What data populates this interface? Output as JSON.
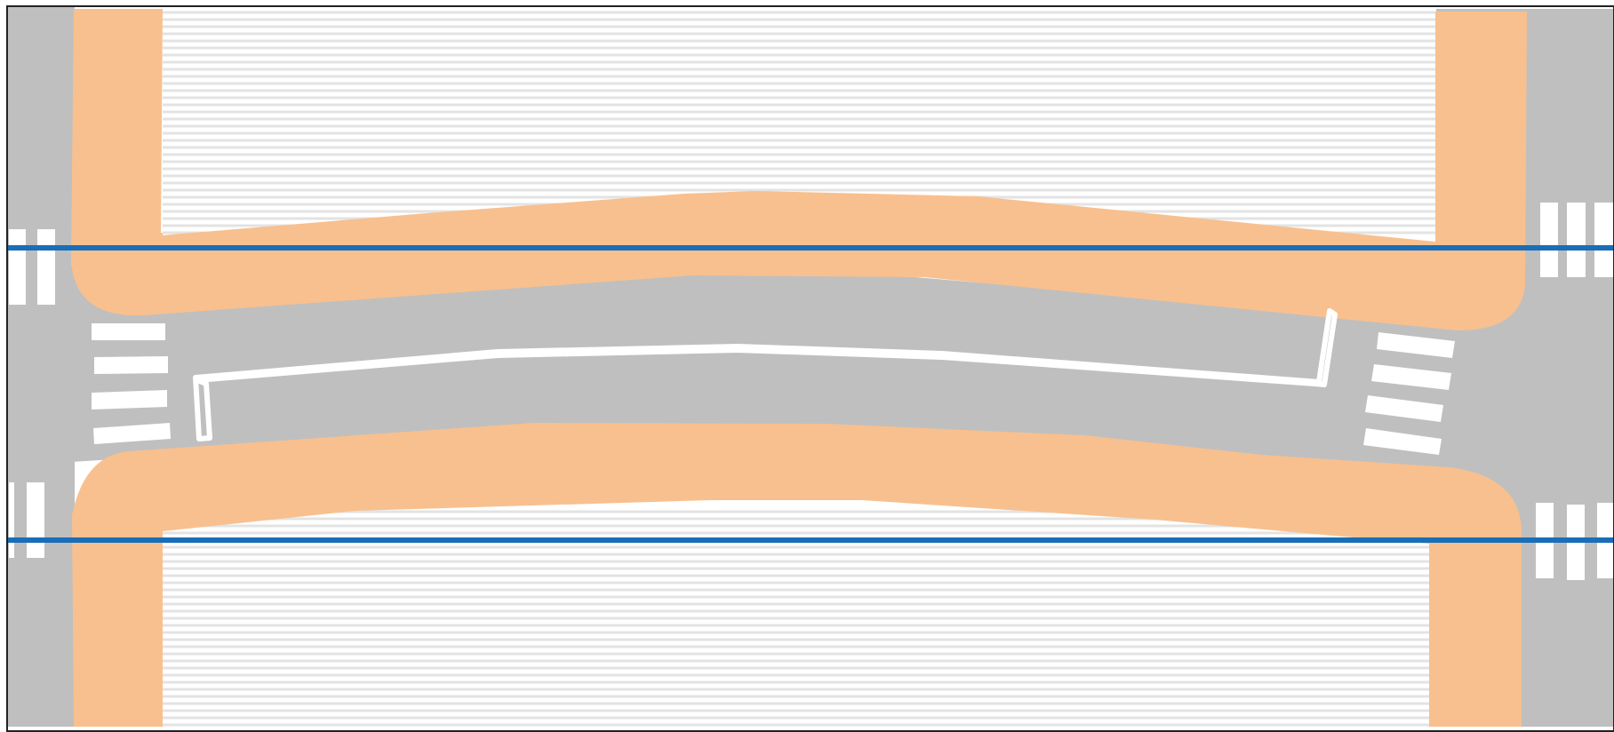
{
  "map": {
    "colors": {
      "road": "#bfbfbf",
      "sidewalk": "#f8c08e",
      "marking": "#ffffff",
      "hatch_line": "#e3e3e3",
      "background": "#ffffff",
      "guide_line": "#1a6eb8",
      "frame": "#222222"
    },
    "features": [
      "road-surface",
      "upper-sidewalk",
      "lower-sidewalk",
      "traffic-island",
      "crosswalk-west",
      "crosswalk-east",
      "stop-bars",
      "guide-lines"
    ]
  }
}
